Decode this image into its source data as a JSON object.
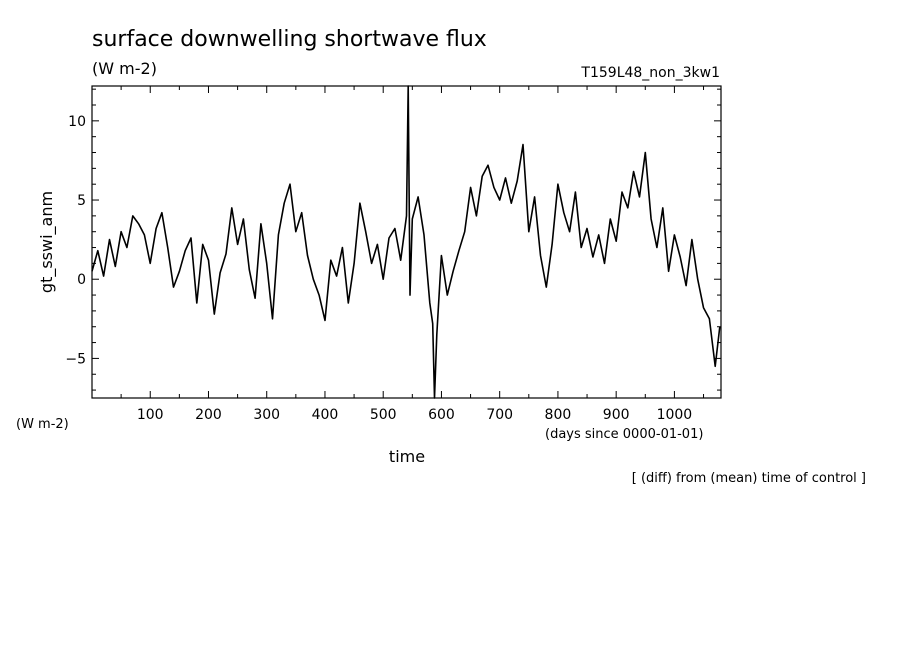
{
  "chart_data": {
    "type": "line",
    "title": "surface downwelling shortwave flux",
    "title_units": "(W m-2)",
    "experiment": "T159L48_non_3kw1",
    "ylabel": "gt_sswi_anm",
    "yunits": "(W m-2)",
    "xlabel": "time",
    "xunits": "(days since 0000-01-01)",
    "note": "[ (diff) from (mean) time of control ]",
    "xlim": [
      0,
      1080
    ],
    "ylim": [
      -7.5,
      12.2
    ],
    "x_ticks": [
      100,
      200,
      300,
      400,
      500,
      600,
      700,
      800,
      900,
      1000
    ],
    "y_ticks": [
      -5,
      0,
      5,
      10
    ],
    "line_color": "#000000",
    "grid": false,
    "series": [
      {
        "x": [
          0,
          10,
          20,
          30,
          40,
          50,
          60,
          70,
          80,
          90,
          100,
          110,
          120,
          130,
          140,
          150,
          160,
          170,
          180,
          190,
          200,
          210,
          220,
          230,
          240,
          250,
          260,
          270,
          280,
          290,
          300,
          310,
          320,
          330,
          340,
          350,
          360,
          370,
          380,
          390,
          400,
          410,
          420,
          430,
          440,
          450,
          460,
          470,
          480,
          490,
          500,
          510,
          520,
          530,
          540,
          543,
          546,
          550,
          560,
          570,
          580,
          585,
          588,
          592,
          600,
          610,
          620,
          630,
          640,
          650,
          660,
          670,
          680,
          690,
          700,
          710,
          720,
          730,
          740,
          750,
          760,
          770,
          780,
          790,
          800,
          810,
          820,
          830,
          840,
          850,
          860,
          870,
          880,
          890,
          900,
          910,
          920,
          930,
          940,
          950,
          960,
          970,
          980,
          990,
          1000,
          1010,
          1020,
          1030,
          1040,
          1050,
          1060,
          1070,
          1078
        ],
        "values": [
          0.5,
          1.8,
          0.2,
          2.5,
          0.8,
          3.0,
          2.0,
          4.0,
          3.5,
          2.8,
          1.0,
          3.2,
          4.2,
          2.0,
          -0.5,
          0.5,
          1.8,
          2.6,
          -1.5,
          2.2,
          1.2,
          -2.2,
          0.4,
          1.6,
          4.5,
          2.2,
          3.8,
          0.6,
          -1.2,
          3.5,
          1.0,
          -2.5,
          2.8,
          4.8,
          6.0,
          3.0,
          4.2,
          1.5,
          0.0,
          -1.0,
          -2.6,
          1.2,
          0.2,
          2.0,
          -1.5,
          1.0,
          4.8,
          3.0,
          1.0,
          2.2,
          0.0,
          2.6,
          3.2,
          1.2,
          4.0,
          12.2,
          -1.0,
          3.8,
          5.2,
          2.8,
          -1.5,
          -2.8,
          -7.5,
          -3.5,
          1.5,
          -1.0,
          0.5,
          1.8,
          3.0,
          5.8,
          4.0,
          6.5,
          7.2,
          5.8,
          5.0,
          6.4,
          4.8,
          6.2,
          8.5,
          3.0,
          5.2,
          1.5,
          -0.5,
          2.2,
          6.0,
          4.2,
          3.0,
          5.5,
          2.0,
          3.2,
          1.4,
          2.8,
          1.0,
          3.8,
          2.4,
          5.5,
          4.5,
          6.8,
          5.2,
          8.0,
          3.8,
          2.0,
          4.5,
          0.5,
          2.8,
          1.4,
          -0.4,
          2.5,
          0.0,
          -1.8,
          -2.5,
          -5.5,
          -3.0
        ]
      }
    ]
  }
}
